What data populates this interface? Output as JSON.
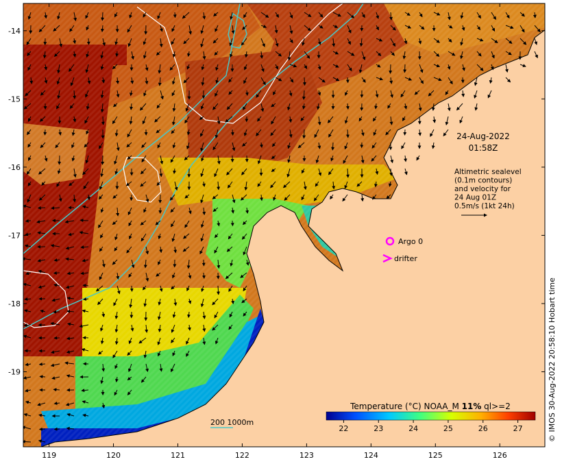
{
  "map": {
    "date_label": "24-Aug-2022",
    "time_label": "01:58Z",
    "altimetry_note": [
      "Altimetric sealevel",
      "(0.1m contours)",
      "and velocity for",
      "24 Aug 01Z",
      "0.5m/s (1kt 24h)"
    ],
    "legend_argo": "Argo 0",
    "legend_drifter": "drifter",
    "depth_legend": "200  1000m",
    "colorbar_title_prefix": "Temperature (°C) NOAA_M ",
    "colorbar_title_bold": "11%",
    "colorbar_title_suffix": " ql>=2",
    "colorbar_ticks": [
      "22",
      "23",
      "24",
      "25",
      "26",
      "27"
    ],
    "colorbar_colors": [
      "#00008f",
      "#0050ff",
      "#00c8ff",
      "#40ff80",
      "#d8ff00",
      "#ffb000",
      "#ff4000",
      "#a00000"
    ],
    "credit": "© IMOS 30-Aug-2022 20:58:10 Hobart time",
    "colors": {
      "land": "#fcd0a4",
      "coastline": "#000000",
      "contour_200": "#48c8c8",
      "sealevel_contour": "#ffffff",
      "marker": "#ff00ff"
    }
  },
  "chart_data": {
    "type": "map",
    "x_ticks": [
      "119",
      "120",
      "121",
      "122",
      "123",
      "124",
      "125",
      "126"
    ],
    "y_ticks": [
      "-14",
      "-15",
      "-16",
      "-17",
      "-18",
      "-19"
    ],
    "xlim": [
      118.6,
      126.7
    ],
    "ylim": [
      -20.1,
      -13.6
    ],
    "colorbar_range": [
      21.5,
      27.5
    ]
  }
}
